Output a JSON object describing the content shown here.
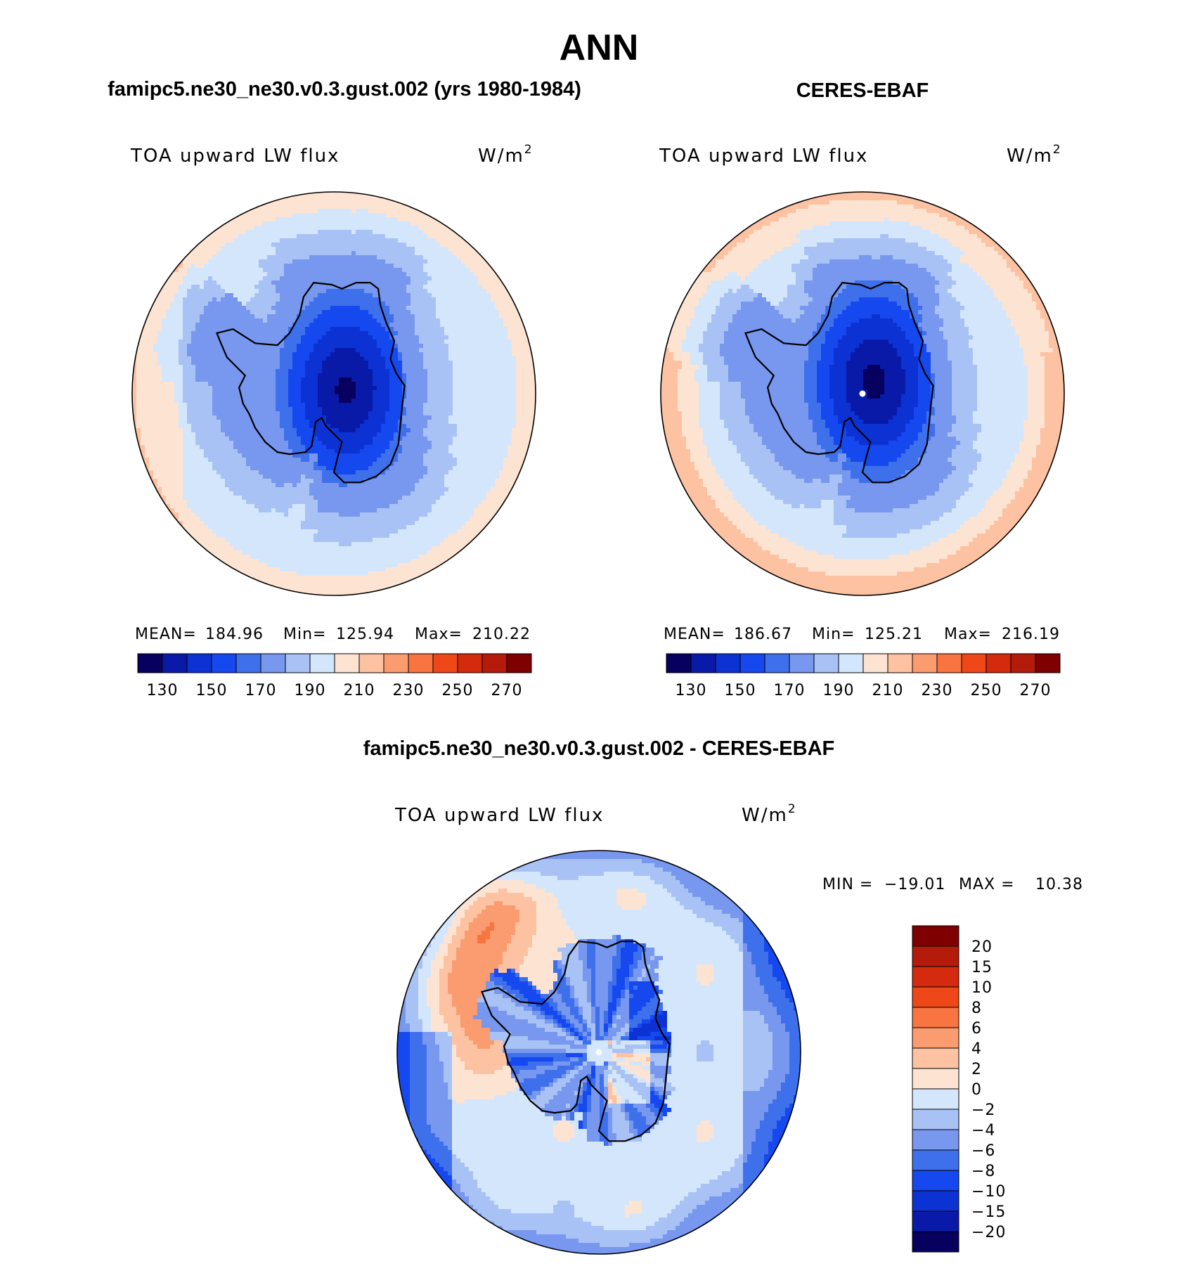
{
  "figure": {
    "title": "ANN",
    "diff_title": "famipc5.ne30_ne30.v0.3.gust.002 - CERES-EBAF"
  },
  "colors": {
    "scale": [
      "#08005e",
      "#0a1aa8",
      "#0d32d4",
      "#1648ef",
      "#3f70ec",
      "#7897ee",
      "#a9c2f5",
      "#d4e6fb",
      "#fde4d2",
      "#fcc2a2",
      "#fb9c70",
      "#f87541",
      "#ee4818",
      "#d42a0e",
      "#b51b0a",
      "#7e0000"
    ],
    "land_outline": "#000000"
  },
  "chart_data": [
    {
      "type": "heatmap",
      "projection": "south-polar-stereographic",
      "panel_title": "famipc5.ne30_ne30.v0.3.gust.002 (yrs 1980-1984)",
      "variable": "TOA upward LW flux",
      "units_base": "W/m",
      "units_exp": "2",
      "stats": {
        "mean_label": "MEAN=",
        "mean": "184.96",
        "min_label": "Min=",
        "min": "125.94",
        "max_label": "Max=",
        "max": "210.22"
      },
      "colorbar": {
        "orientation": "horizontal",
        "levels": [
          "130",
          "150",
          "170",
          "190",
          "210",
          "230",
          "250",
          "270"
        ]
      },
      "field": {
        "pole_value": 127,
        "plateau_value": 140,
        "coast_value": 172,
        "ocean_near": 190,
        "ocean_far": 205
      }
    },
    {
      "type": "heatmap",
      "projection": "south-polar-stereographic",
      "panel_title": "CERES-EBAF",
      "variable": "TOA upward LW flux",
      "units_base": "W/m",
      "units_exp": "2",
      "stats": {
        "mean_label": "MEAN=",
        "mean": "186.67",
        "min_label": "Min=",
        "min": "125.21",
        "max_label": "Max=",
        "max": "216.19"
      },
      "colorbar": {
        "orientation": "horizontal",
        "levels": [
          "130",
          "150",
          "170",
          "190",
          "210",
          "230",
          "250",
          "270"
        ]
      },
      "field": {
        "pole_value": 126,
        "plateau_value": 148,
        "coast_value": 172,
        "ocean_near": 192,
        "ocean_far": 213
      }
    },
    {
      "type": "heatmap",
      "projection": "south-polar-stereographic",
      "panel_title": "famipc5.ne30_ne30.v0.3.gust.002 - CERES-EBAF",
      "variable": "TOA upward LW flux",
      "units_base": "W/m",
      "units_exp": "2",
      "stats": {
        "min_label": "MIN =",
        "min": "−19.01",
        "max_label": "MAX =",
        "max": "10.38"
      },
      "colorbar": {
        "orientation": "vertical",
        "levels": [
          "20",
          "15",
          "10",
          "8",
          "6",
          "4",
          "2",
          "0",
          "−2",
          "−4",
          "−6",
          "−8",
          "−10",
          "−15",
          "−20"
        ]
      },
      "field": {
        "range": [
          -19.01,
          10.38
        ]
      }
    }
  ]
}
